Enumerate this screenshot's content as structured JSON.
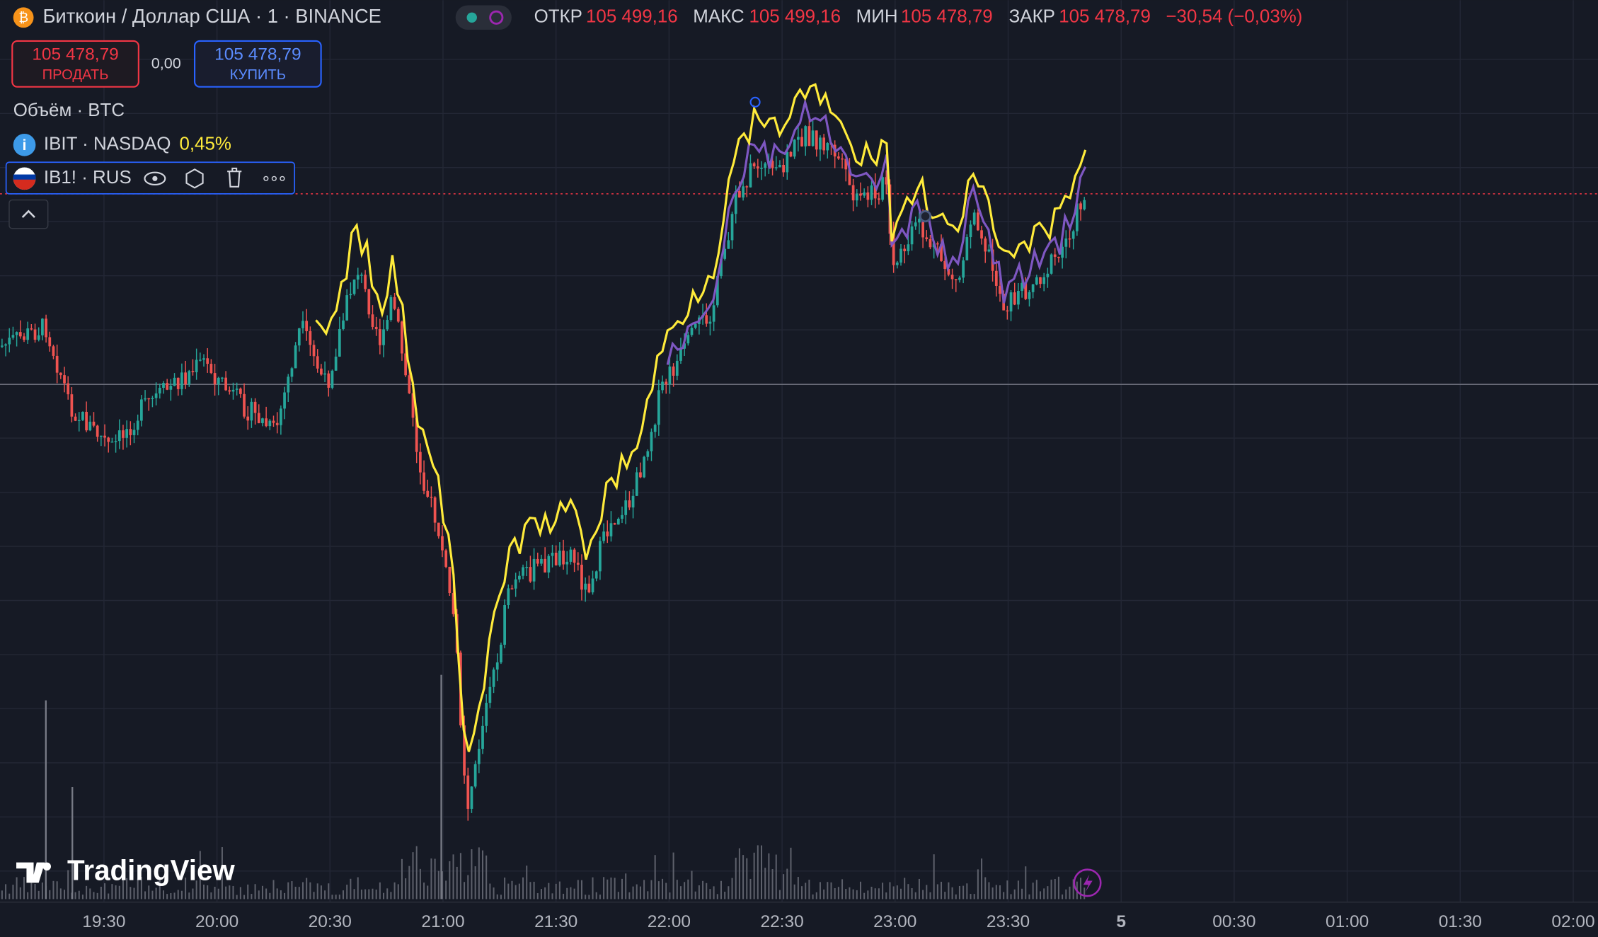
{
  "header": {
    "symbol": "Биткоин / Доллар США · 1 · BINANCE",
    "ohlc": [
      {
        "label": "ОТКР",
        "value": "105 499,16"
      },
      {
        "label": "МАКС",
        "value": "105 499,16"
      },
      {
        "label": "МИН",
        "value": "105 478,79"
      },
      {
        "label": "ЗАКР",
        "value": "105 478,79"
      }
    ],
    "change": "−30,54 (−0,03%)"
  },
  "trade": {
    "sell_price": "105 478,79",
    "sell_label": "ПРОДАТЬ",
    "spread": "0,00",
    "buy_price": "105 478,79",
    "buy_label": "КУПИТЬ"
  },
  "indicators": {
    "volume": "Объём · BTC",
    "compare": [
      {
        "name": "IBIT · NASDAQ",
        "value": "0,45%"
      },
      {
        "name": "IB1! · RUS"
      }
    ]
  },
  "time_axis": [
    "19:30",
    "20:00",
    "20:30",
    "21:00",
    "21:30",
    "22:00",
    "22:30",
    "23:00",
    "23:30",
    "5",
    "00:30",
    "01:00",
    "01:30",
    "02:00"
  ],
  "logo": "TradingView"
}
